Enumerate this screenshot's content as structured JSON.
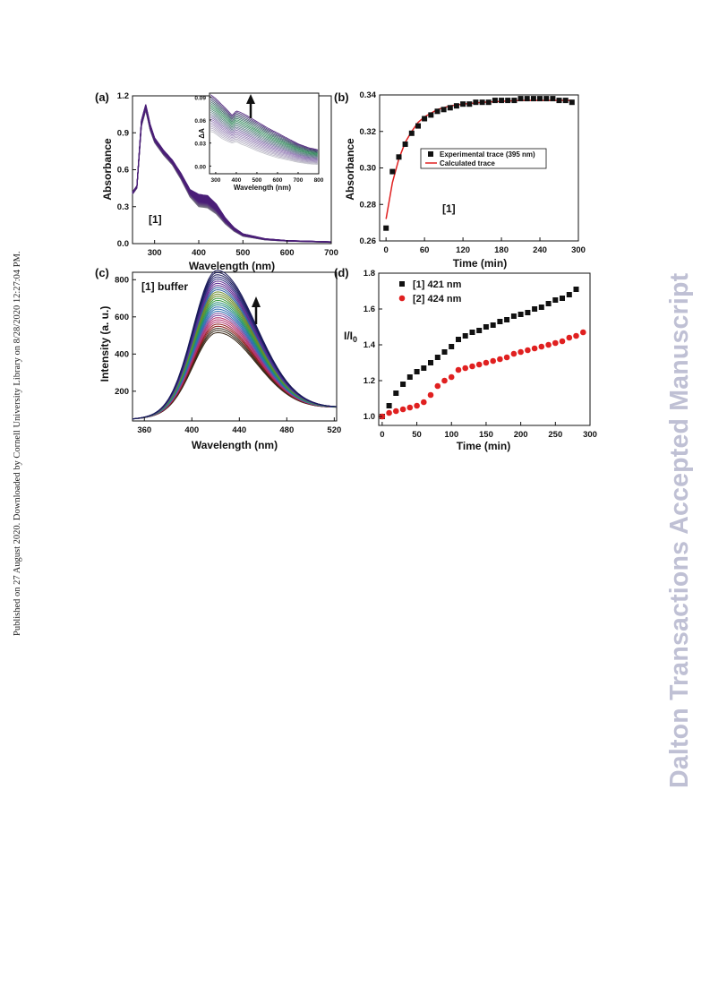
{
  "side_note_left": "Published on 27 August 2020. Downloaded by Cornell University Library on 8/28/2020 12:27:04 PM.",
  "side_note_right": "Dalton Transactions Accepted Manuscript",
  "chart_data": [
    {
      "panel": "(a)",
      "type": "line",
      "xlabel": "Wavelength (nm)",
      "ylabel": "Absorbance",
      "xlim": [
        250,
        700
      ],
      "ylim": [
        0.0,
        1.2
      ],
      "xticks": [
        300,
        400,
        500,
        600,
        700
      ],
      "yticks": [
        0.0,
        0.3,
        0.6,
        0.9,
        1.2
      ],
      "annotation": "[1]",
      "series_count": 25,
      "series": [
        {
          "x": [
            250,
            260,
            270,
            280,
            290,
            300,
            320,
            340,
            360,
            380,
            400,
            420,
            440,
            460,
            480,
            500,
            550,
            600,
            650,
            700
          ],
          "values": [
            0.4,
            0.45,
            0.95,
            1.08,
            0.92,
            0.82,
            0.72,
            0.64,
            0.52,
            0.38,
            0.3,
            0.29,
            0.24,
            0.16,
            0.1,
            0.06,
            0.03,
            0.02,
            0.015,
            0.01
          ]
        },
        {
          "x": [
            250,
            260,
            270,
            280,
            290,
            300,
            320,
            340,
            360,
            380,
            400,
            420,
            440,
            460,
            480,
            500,
            550,
            600,
            650,
            700
          ],
          "values": [
            0.42,
            0.47,
            1.0,
            1.13,
            0.97,
            0.86,
            0.76,
            0.68,
            0.57,
            0.44,
            0.4,
            0.39,
            0.32,
            0.21,
            0.13,
            0.08,
            0.04,
            0.025,
            0.02,
            0.015
          ]
        }
      ],
      "inset": {
        "xlabel": "Wavelength (nm)",
        "ylabel": "ΔA",
        "xlim": [
          270,
          800
        ],
        "ylim": [
          -0.01,
          0.095
        ],
        "xticks": [
          300,
          400,
          500,
          600,
          700,
          800
        ],
        "yticks": [
          0.0,
          0.03,
          0.06,
          0.09
        ],
        "ytick_labels": [
          "0.00",
          "0.03",
          "0.06",
          "0.09"
        ],
        "series": [
          {
            "x": [
              275,
              290,
              300,
              330,
              360,
              380,
              400,
              420,
              450,
              500,
              550,
              600,
              650,
              700,
              750,
              800
            ],
            "values": [
              0.045,
              0.044,
              0.042,
              0.036,
              0.032,
              0.03,
              0.032,
              0.029,
              0.026,
              0.02,
              0.015,
              0.011,
              0.008,
              0.005,
              0.003,
              0.002
            ]
          },
          {
            "x": [
              275,
              290,
              300,
              330,
              360,
              380,
              400,
              420,
              450,
              500,
              550,
              600,
              650,
              700,
              750,
              800
            ],
            "values": [
              0.093,
              0.09,
              0.088,
              0.08,
              0.072,
              0.066,
              0.072,
              0.07,
              0.066,
              0.058,
              0.05,
              0.043,
              0.036,
              0.029,
              0.024,
              0.021
            ]
          }
        ]
      }
    },
    {
      "panel": "(b)",
      "type": "scatter",
      "xlabel": "Time (min)",
      "ylabel": "Absorbance",
      "xlim": [
        -10,
        300
      ],
      "ylim": [
        0.26,
        0.34
      ],
      "xticks": [
        0,
        60,
        120,
        180,
        240,
        300
      ],
      "yticks": [
        0.26,
        0.28,
        0.3,
        0.32,
        0.34
      ],
      "annotation": "[1]",
      "legend": [
        "Experimental trace (395 nm)",
        "Calculated trace"
      ],
      "series": [
        {
          "name": "Experimental trace (395 nm)",
          "x": [
            0,
            10,
            20,
            30,
            40,
            50,
            60,
            70,
            80,
            90,
            100,
            110,
            120,
            130,
            140,
            150,
            160,
            170,
            180,
            190,
            200,
            210,
            220,
            230,
            240,
            250,
            260,
            270,
            280,
            290
          ],
          "values": [
            0.267,
            0.298,
            0.306,
            0.313,
            0.319,
            0.323,
            0.327,
            0.329,
            0.331,
            0.332,
            0.333,
            0.334,
            0.335,
            0.335,
            0.336,
            0.336,
            0.336,
            0.337,
            0.337,
            0.337,
            0.337,
            0.338,
            0.338,
            0.338,
            0.338,
            0.338,
            0.338,
            0.337,
            0.337,
            0.336
          ]
        },
        {
          "name": "Calculated trace",
          "x": [
            0,
            10,
            20,
            30,
            40,
            50,
            60,
            80,
            100,
            120,
            150,
            180,
            210,
            240,
            270,
            290
          ],
          "values": [
            0.272,
            0.292,
            0.305,
            0.314,
            0.32,
            0.325,
            0.328,
            0.332,
            0.334,
            0.335,
            0.336,
            0.3365,
            0.337,
            0.337,
            0.337,
            0.337
          ]
        }
      ]
    },
    {
      "panel": "(c)",
      "type": "line",
      "xlabel": "Wavelength (nm)",
      "ylabel": "Intensity (a. u.)",
      "xlim": [
        350,
        522
      ],
      "ylim": [
        40,
        840
      ],
      "xticks": [
        360,
        400,
        440,
        480,
        520
      ],
      "yticks": [
        200,
        400,
        600,
        800
      ],
      "annotation": "[1] buffer",
      "series_count": 30,
      "peak_wavelength": 421,
      "peak_range": [
        490,
        825
      ]
    },
    {
      "panel": "(d)",
      "type": "scatter",
      "xlabel": "Time (min)",
      "ylabel": "I/I0",
      "xlim": [
        -5,
        300
      ],
      "ylim": [
        0.95,
        1.8
      ],
      "xticks": [
        0,
        50,
        100,
        150,
        200,
        250,
        300
      ],
      "yticks": [
        1.0,
        1.2,
        1.4,
        1.6,
        1.8
      ],
      "series": [
        {
          "name": "[1] 421 nm",
          "x": [
            0,
            10,
            20,
            30,
            40,
            50,
            60,
            70,
            80,
            90,
            100,
            110,
            120,
            130,
            140,
            150,
            160,
            170,
            180,
            190,
            200,
            210,
            220,
            230,
            240,
            250,
            260,
            270,
            280
          ],
          "values": [
            1.0,
            1.06,
            1.13,
            1.18,
            1.22,
            1.25,
            1.27,
            1.3,
            1.33,
            1.36,
            1.39,
            1.43,
            1.45,
            1.47,
            1.48,
            1.5,
            1.51,
            1.53,
            1.54,
            1.56,
            1.57,
            1.58,
            1.6,
            1.61,
            1.63,
            1.65,
            1.66,
            1.68,
            1.71
          ]
        },
        {
          "name": "[2] 424 nm",
          "x": [
            0,
            10,
            20,
            30,
            40,
            50,
            60,
            70,
            80,
            90,
            100,
            110,
            120,
            130,
            140,
            150,
            160,
            170,
            180,
            190,
            200,
            210,
            220,
            230,
            240,
            250,
            260,
            270,
            280,
            290
          ],
          "values": [
            1.0,
            1.02,
            1.03,
            1.04,
            1.05,
            1.06,
            1.08,
            1.12,
            1.17,
            1.2,
            1.22,
            1.26,
            1.27,
            1.28,
            1.29,
            1.3,
            1.31,
            1.32,
            1.33,
            1.35,
            1.36,
            1.37,
            1.38,
            1.39,
            1.4,
            1.41,
            1.42,
            1.44,
            1.45,
            1.47
          ]
        }
      ]
    }
  ],
  "colors": {
    "spectra_dark": "#4b1f78",
    "spectra_light": "#7a7a82",
    "spectra_green": "#2e8b57",
    "fit_red": "#e02020",
    "series2_red": "#e02020",
    "marker_black": "#111111",
    "watermark": "#bfc0d4"
  }
}
